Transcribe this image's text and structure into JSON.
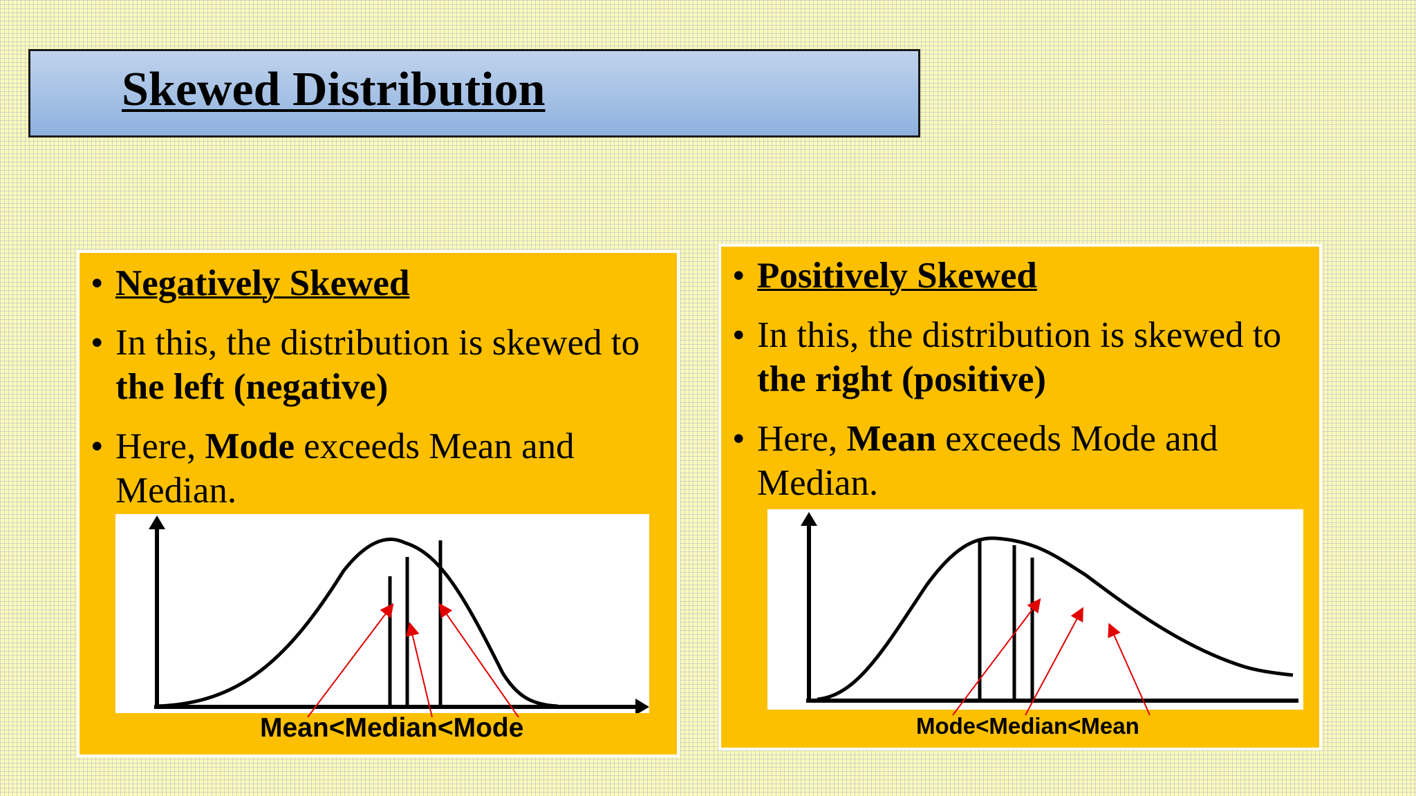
{
  "slide": {
    "title": "Skewed Distribution",
    "colors": {
      "title_bar": "#8eb1df",
      "panel": "#fdc000",
      "background": "#fbfbb8",
      "arrow": "#e00000",
      "curve": "#000000"
    }
  },
  "panels": [
    {
      "heading": "Negatively Skewed",
      "line1_plain": "In this, the distribution is skewed to ",
      "line1_bold": "the left (negative)",
      "line2_pre": "Here, ",
      "line2_bold": "Mode",
      "line2_post": " exceeds Mean and Median.",
      "caption": "Mean<Median<Mode"
    },
    {
      "heading": "Positively Skewed",
      "line1_plain": "In this, the distribution is skewed to ",
      "line1_bold": "the right (positive)",
      "line2_pre": "Here, ",
      "line2_bold": "Mean",
      "line2_post": " exceeds Mode and Median.",
      "caption": "Mode<Median<Mean"
    }
  ],
  "bullet_symbol": "•"
}
